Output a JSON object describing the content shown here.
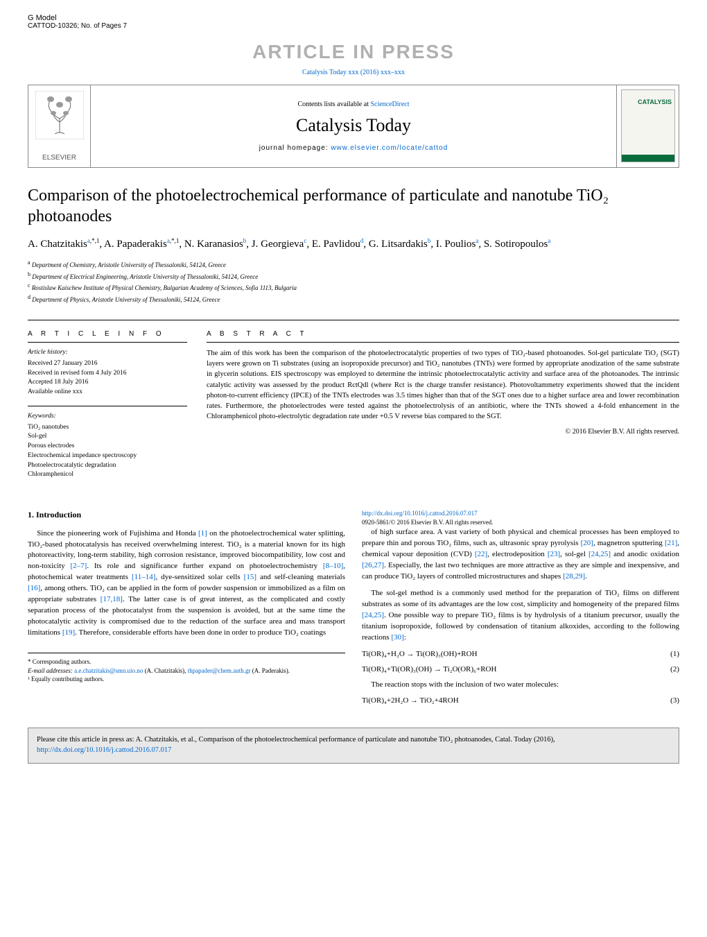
{
  "top": {
    "gmodel": "G Model",
    "docid": "CATTOD-10326;   No. of Pages 7"
  },
  "banner": "ARTICLE IN PRESS",
  "citation_link": "Catalysis Today xxx (2016) xxx–xxx",
  "journal_header": {
    "contents_prefix": "Contents lists available at ",
    "contents_link": "ScienceDirect",
    "journal_title": "Catalysis Today",
    "homepage_prefix": "journal homepage: ",
    "homepage_link": "www.elsevier.com/locate/cattod",
    "publisher": "ELSEVIER",
    "cover_label": "CATALYSIS"
  },
  "article": {
    "title": "Comparison of the photoelectrochemical performance of particulate and nanotube TiO₂ photoanodes",
    "authors_html": "A. Chatzitakis<sup><a href=\"#\">a</a>,*,1</sup>, A. Papaderakis<sup><a href=\"#\">a</a>,*,1</sup>, N. Karanasios<sup><a href=\"#\">b</a></sup>, J. Georgieva<sup><a href=\"#\">c</a></sup>, E. Pavlidou<sup><a href=\"#\">d</a></sup>, G. Litsardakis<sup><a href=\"#\">b</a></sup>, I. Poulios<sup><a href=\"#\">a</a></sup>, S. Sotiropoulos<sup><a href=\"#\">a</a></sup>",
    "affiliations": [
      {
        "tag": "a",
        "text": "Department of Chemistry, Aristotle University of Thessaloniki, 54124, Greece"
      },
      {
        "tag": "b",
        "text": "Department of Electrical Engineering, Aristotle University of Thessaloniki, 54124, Greece"
      },
      {
        "tag": "c",
        "text": "Rostislaw Kaischew Institute of Physical Chemistry, Bulgarian Academy of Sciences, Sofia 1113, Bulgaria"
      },
      {
        "tag": "d",
        "text": "Department of Physics, Aristotle University of Thessaloniki, 54124, Greece"
      }
    ]
  },
  "info": {
    "heading": "a r t i c l e    i n f o",
    "history_label": "Article history:",
    "history": [
      "Received 27 January 2016",
      "Received in revised form 4 July 2016",
      "Accepted 18 July 2016",
      "Available online xxx"
    ],
    "keywords_label": "Keywords:",
    "keywords": [
      "TiO₂ nanotubes",
      "Sol-gel",
      "Porous electrodes",
      "Electrochemical impedance spectroscopy",
      "Photoelectrocatalytic degradation",
      "Chloramphenicol"
    ]
  },
  "abstract": {
    "heading": "a b s t r a c t",
    "text": "The aim of this work has been the comparison of the photoelectrocatalytic properties of two types of TiO₂-based photoanodes. Sol-gel particulate TiO₂ (SGT) layers were grown on Ti substrates (using an isopropoxide precursor) and TiO₂ nanotubes (TNTs) were formed by appropriate anodization of the same substrate in glycerin solutions. EIS spectroscopy was employed to determine the intrinsic photoelectrocatalytic activity and surface area of the photoanodes. The intrinsic catalytic activity was assessed by the product RctQdl (where Rct is the charge transfer resistance). Photovoltammetry experiments showed that the incident photon-to-current efficiency (IPCE) of the TNTs electrodes was 3.5 times higher than that of the SGT ones due to a higher surface area and lower recombination rates. Furthermore, the photoelectrodes were tested against the photoelectrolysis of an antibiotic, where the TNTs showed a 4-fold enhancement in the Chloramphenicol photo-electrolytic degradation rate under +0.5 V reverse bias compared to the SGT.",
    "copyright": "© 2016 Elsevier B.V. All rights reserved."
  },
  "body": {
    "section1_title": "1. Introduction",
    "p1_html": "Since the pioneering work of Fujishima and Honda <a href=\"#\">[1]</a> on the photoelectrochemical water splitting, TiO₂-based photocatalysis has received overwhelming interest. TiO₂ is a material known for its high photoreactivity, long-term stability, high corrosion resistance, improved biocompatibility, low cost and non-toxicity <a href=\"#\">[2–7]</a>. Its role and significance further expand on photoelectrochemistry <a href=\"#\">[8–10]</a>, photochemical water treatments <a href=\"#\">[11–14]</a>, dye-sensitized solar cells <a href=\"#\">[15]</a> and self-cleaning materials <a href=\"#\">[16]</a>, among others. TiO₂ can be applied in the form of powder suspension or immobilized as a film on appropriate substrates <a href=\"#\">[17,18]</a>. The latter case is of great interest, as the complicated and costly separation process of the photocatalyst from the suspension is avoided, but at the same time the photocatalytic activity is compromised due to the reduction of the surface area and mass transport limitations <a href=\"#\">[19]</a>. Therefore, considerable efforts have been done in order to produce TiO₂ coatings",
    "p2_html": "of high surface area. A vast variety of both physical and chemical processes has been employed to prepare thin and porous TiO₂ films, such as, ultrasonic spray pyrolysis <a href=\"#\">[20]</a>, magnetron sputtering <a href=\"#\">[21]</a>, chemical vapour deposition (CVD) <a href=\"#\">[22]</a>, electrodeposition <a href=\"#\">[23]</a>, sol-gel <a href=\"#\">[24,25]</a> and anodic oxidation <a href=\"#\">[26,27]</a>. Especially, the last two techniques are more attractive as they are simple and inexpensive, and can produce TiO₂ layers of controlled microstructures and shapes <a href=\"#\">[28,29]</a>.",
    "p3_html": "The sol-gel method is a commonly used method for the preparation of TiO₂ films on different substrates as some of its advantages are the low cost, simplicity and homogeneity of the prepared films <a href=\"#\">[24,25]</a>. One possible way to prepare TiO₂ films is by hydrolysis of a titanium precursor, usually the titanium isopropoxide, followed by condensation of titanium alkoxides, according to the following reactions <a href=\"#\">[30]</a>:",
    "eq1": "Ti(OR)₄+H₂O → Ti(OR)₃(OH)+ROH",
    "eq1_num": "(1)",
    "eq2": "Ti(OR)₄+Ti(OR)₃(OH) → Ti₂O(OR)₆+ROH",
    "eq2_num": "(2)",
    "p4": "The reaction stops with the inclusion of two water molecules:",
    "eq3": "Ti(OR)₄+2H₂O → TiO₂+4ROH",
    "eq3_num": "(3)"
  },
  "footnotes": {
    "corr": "* Corresponding authors.",
    "emails_label": "E-mail addresses: ",
    "email1": "a.e.chatzitakis@smn.uio.no",
    "email1_who": " (A. Chatzitakis), ",
    "email2": "thpapader@chem.auth.gr",
    "email2_who": " (A. Paderakis).",
    "equal": "¹ Equally contributing authors."
  },
  "doi": {
    "link": "http://dx.doi.org/10.1016/j.cattod.2016.07.017",
    "issn_line": "0920-5861/© 2016 Elsevier B.V. All rights reserved."
  },
  "citebox_html": "Please cite this article in press as: A. Chatzitakis, et al., Comparison of the photoelectrochemical performance of particulate and nanotube TiO₂ photoanodes, Catal. Today (2016), <a href=\"#\">http://dx.doi.org/10.1016/j.cattod.2016.07.017</a>",
  "colors": {
    "link": "#0066cc",
    "banner_gray": "#b0b0b0",
    "cover_green": "#0a6b3c",
    "citebox_bg": "#e8e8e8",
    "border": "#888888"
  },
  "typography": {
    "title_pt": 24,
    "journal_pt": 26,
    "banner_pt": 28,
    "body_pt": 11,
    "abstract_pt": 10.5,
    "small_pt": 9
  }
}
